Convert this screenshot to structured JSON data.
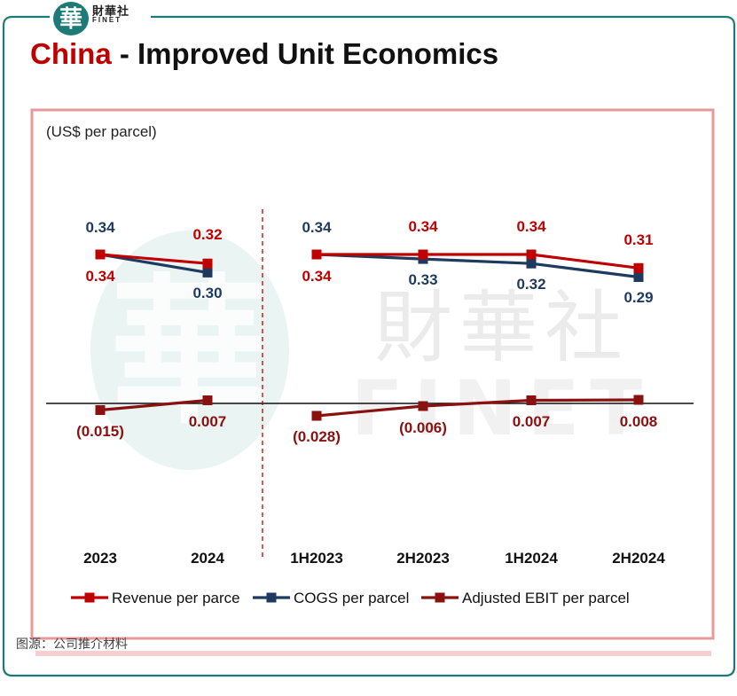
{
  "brand": {
    "logo_char": "華",
    "name_cn": "財華社",
    "name_en": "FINET"
  },
  "header": {
    "title_accent": "China",
    "title_rest": " - Improved Unit Economics"
  },
  "source_note": "图源：公司推介材料",
  "colors": {
    "revenue": "#c00000",
    "cogs": "#1f3a5f",
    "ebit": "#8b1010",
    "frame_teal": "#1d7b77",
    "panel_border": "#e89999",
    "divider": "#c00000"
  },
  "chart_data": {
    "type": "line",
    "unit_label": "(US$ per parcel)",
    "categories": [
      "2023",
      "2024",
      "1H2023",
      "2H2023",
      "1H2024",
      "2H2024"
    ],
    "series": [
      {
        "name": "Revenue per parce",
        "values": [
          0.34,
          0.32,
          0.34,
          0.34,
          0.34,
          0.31
        ],
        "labels": [
          "0.34",
          "0.32",
          "0.34",
          "0.34",
          "0.34",
          "0.31"
        ]
      },
      {
        "name": "COGS per parcel",
        "values": [
          0.34,
          0.3,
          0.34,
          0.33,
          0.32,
          0.29
        ],
        "labels": [
          "0.34",
          "0.30",
          "0.34",
          "0.33",
          "0.32",
          "0.29"
        ]
      },
      {
        "name": "Adjusted EBIT per parcel",
        "values": [
          -0.015,
          0.007,
          -0.028,
          -0.006,
          0.007,
          0.008
        ],
        "labels": [
          "(0.015)",
          "0.007",
          "(0.028)",
          "(0.006)",
          "0.007",
          "0.008"
        ]
      }
    ],
    "legend_position": "bottom",
    "grid": false,
    "segments": [
      [
        0,
        1
      ],
      [
        2,
        5
      ]
    ]
  }
}
